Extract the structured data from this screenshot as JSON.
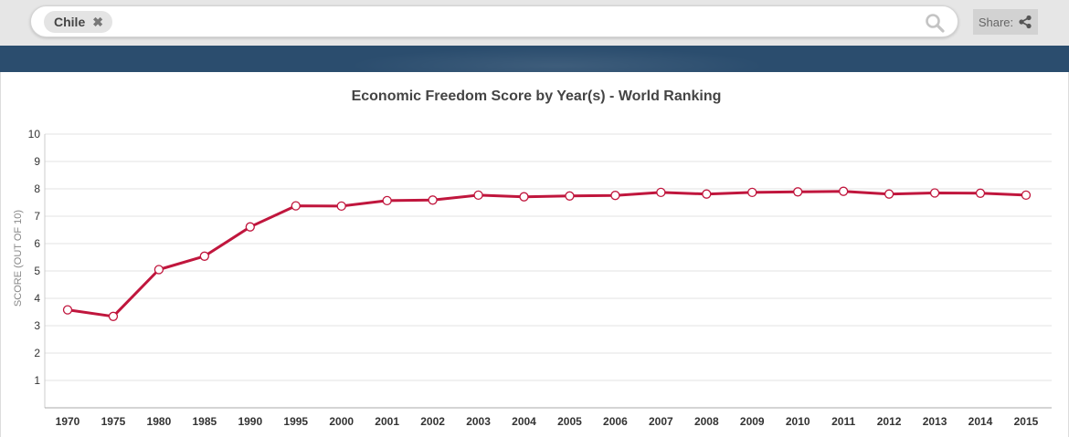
{
  "search": {
    "tag_label": "Chile",
    "tag_remove_glyph": "✖"
  },
  "share": {
    "label": "Share:"
  },
  "colors": {
    "line": "#c0163d",
    "banner": "#2b4d6e"
  },
  "chart_data": {
    "type": "line",
    "title": "Economic Freedom Score by Year(s) - World Ranking",
    "xlabel": "",
    "ylabel": "SCORE (OUT OF 10)",
    "ylim": [
      0,
      10
    ],
    "yticks": [
      1,
      2,
      3,
      4,
      5,
      6,
      7,
      8,
      9,
      10
    ],
    "grid": true,
    "categories": [
      "1970",
      "1975",
      "1980",
      "1985",
      "1990",
      "1995",
      "2000",
      "2001",
      "2002",
      "2003",
      "2004",
      "2005",
      "2006",
      "2007",
      "2008",
      "2009",
      "2010",
      "2011",
      "2012",
      "2013",
      "2014",
      "2015"
    ],
    "series": [
      {
        "values": [
          3.58,
          3.34,
          5.05,
          5.54,
          6.61,
          7.38,
          7.37,
          7.57,
          7.59,
          7.77,
          7.71,
          7.74,
          7.76,
          7.87,
          7.81,
          7.87,
          7.89,
          7.91,
          7.81,
          7.85,
          7.84,
          7.77
        ]
      }
    ]
  }
}
